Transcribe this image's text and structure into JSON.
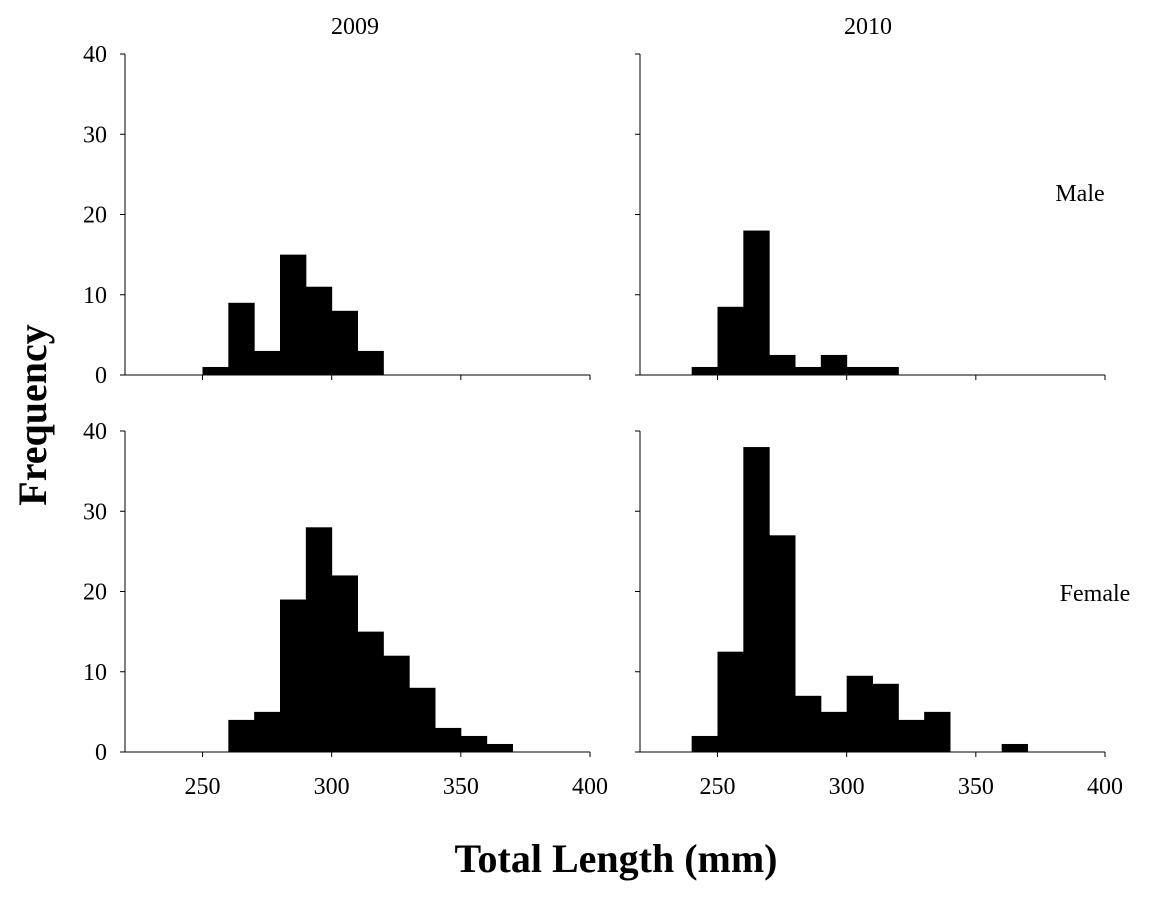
{
  "chart_data": {
    "type": "bar",
    "description_free": true,
    "xlabel": "Total Length (mm)",
    "ylabel": "Frequency",
    "xlim": [
      220,
      400
    ],
    "xticks": [
      250,
      300,
      350,
      400
    ],
    "ylim": [
      0,
      40
    ],
    "yticks": [
      0,
      10,
      20,
      30,
      40
    ],
    "bin_width": 10,
    "panels": [
      {
        "column_label": "2009",
        "row_label": "",
        "bin_starts": [
          250,
          260,
          270,
          280,
          290,
          300,
          310
        ],
        "values": [
          1,
          9,
          3,
          15,
          11,
          8,
          3
        ]
      },
      {
        "column_label": "2010",
        "row_label": "Male",
        "bin_starts": [
          240,
          250,
          260,
          270,
          280,
          290,
          300,
          310
        ],
        "values": [
          1,
          8.5,
          18,
          2.5,
          1,
          2.5,
          1,
          1
        ]
      },
      {
        "column_label": "",
        "row_label": "",
        "bin_starts": [
          260,
          270,
          280,
          290,
          300,
          310,
          320,
          330,
          340,
          350,
          360
        ],
        "values": [
          4,
          5,
          19,
          28,
          22,
          15,
          12,
          8,
          3,
          2,
          1
        ]
      },
      {
        "column_label": "",
        "row_label": "Female",
        "bin_starts": [
          240,
          250,
          260,
          270,
          280,
          290,
          300,
          310,
          320,
          330,
          340,
          350,
          360
        ],
        "values": [
          2,
          12.5,
          38,
          27,
          7,
          5,
          9.5,
          8.5,
          4,
          5,
          0,
          0,
          1
        ]
      }
    ]
  }
}
